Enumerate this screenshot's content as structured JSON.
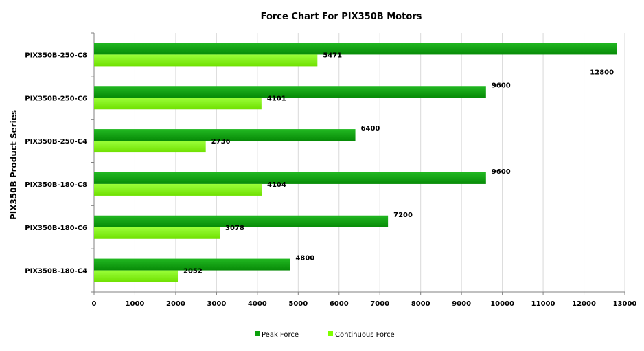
{
  "chart_data": {
    "type": "bar",
    "orientation": "horizontal",
    "title": "Force Chart For PIX350B Motors",
    "ylabel": "PIX350B  Product Series",
    "xlabel": "",
    "xlim": [
      0,
      13000
    ],
    "x_ticks": [
      0,
      1000,
      2000,
      3000,
      4000,
      5000,
      6000,
      7000,
      8000,
      9000,
      10000,
      11000,
      12000,
      13000
    ],
    "grid": true,
    "legend_position": "bottom",
    "categories": [
      "PIX350B-250-C8",
      "PIX350B-250-C6",
      "PIX350B-250-C4",
      "PIX350B-180-C8",
      "PIX350B-180-C6",
      "PIX350B-180-C4"
    ],
    "series": [
      {
        "name": "Peak Force",
        "color": "#0aa00a",
        "values": [
          12800,
          9600,
          6400,
          9600,
          7200,
          4800
        ]
      },
      {
        "name": "Continuous Force",
        "color": "#7fff00",
        "values": [
          5471,
          4101,
          2736,
          4104,
          3078,
          2052
        ]
      }
    ]
  }
}
